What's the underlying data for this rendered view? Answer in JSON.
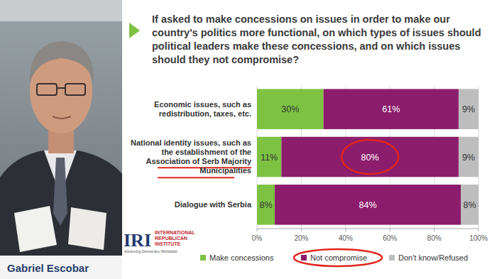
{
  "chart_data": {
    "type": "bar",
    "orientation": "horizontal",
    "stacked": true,
    "data_labels": true,
    "title": "If asked to make concessions on issues in order to make our country's politics more functional, on which types of issues should political leaders make these concessions, and on which issues should they not compromise?",
    "categories": [
      "Economic issues, such as redistribution, taxes, etc.",
      "National identity issues, such as the establishment of the Association of Serb Majority Municipalities",
      "Dialogue with Serbia"
    ],
    "series": [
      {
        "name": "Make concessions",
        "color": "#7dc242",
        "values": [
          30,
          11,
          8
        ],
        "value_labels": [
          "30%",
          "11%",
          "8%"
        ]
      },
      {
        "name": "Not compromise",
        "color": "#8c1d6c",
        "values": [
          61,
          80,
          84
        ],
        "value_labels": [
          "61%",
          "80%",
          "84%"
        ]
      },
      {
        "name": "Don't know/Refused",
        "color": "#bdbdbd",
        "values": [
          9,
          9,
          8
        ],
        "value_labels": [
          "9%",
          "9%",
          "8%"
        ]
      }
    ],
    "xlim": [
      0,
      100
    ],
    "xticks": [
      {
        "value": 0,
        "label": "0%"
      },
      {
        "value": 20,
        "label": "20%"
      },
      {
        "value": 40,
        "label": "40%"
      },
      {
        "value": 60,
        "label": "60%"
      },
      {
        "value": 80,
        "label": "80%"
      },
      {
        "value": 100,
        "label": "100%"
      }
    ],
    "grid": true,
    "legend": "bottom"
  },
  "speaker": "Gabriel Escobar",
  "logo": {
    "name": "IRI",
    "lines": [
      "INTERNATIONAL",
      "REPUBLICAN",
      "INSTITUTE"
    ],
    "tagline": "Advancing Democracy Worldwide"
  }
}
